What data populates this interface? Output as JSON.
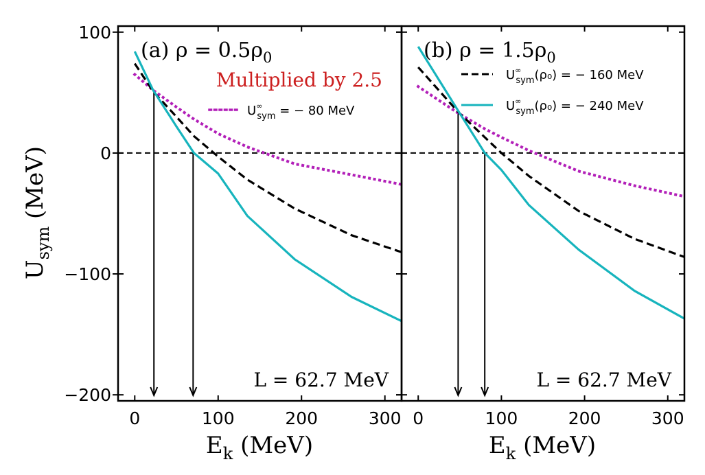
{
  "chart_data": [
    {
      "type": "line",
      "panel_label": "(a) ρ = 0.5ρ",
      "panel_label_sub": "0",
      "annotation": "Multiplied by 2.5",
      "annotation_color": "#cc1f1f",
      "l_label": "L = 62.7 MeV",
      "xlabel": "E",
      "xlabel_sub": "k",
      "xlabel_unit": " (MeV)",
      "ylabel": "U",
      "ylabel_sub": "sym",
      "ylabel_unit": " (MeV)",
      "xlim": [
        -20,
        320
      ],
      "ylim": [
        -205,
        105
      ],
      "xticks": [
        0,
        100,
        200,
        300
      ],
      "yticks": [
        100,
        0,
        -100,
        -200
      ],
      "ytick_labels": [
        "100",
        "0",
        "−100",
        "−200"
      ],
      "xtick_labels": [
        "0",
        "100",
        "200",
        "300"
      ],
      "zero_line": true,
      "arrows_at_x": [
        23,
        70
      ],
      "arrows_from_y": [
        52,
        0
      ],
      "legend": [
        {
          "series": "purple",
          "label_main": "U",
          "label_sup": "∞",
          "label_sub": "sym",
          "label_rest": " = − 80 MeV"
        }
      ],
      "series": [
        {
          "name": "purple",
          "label": "U∞sym = −80 MeV",
          "color": "#b21fb8",
          "style": "dotted",
          "x": [
            0,
            22,
            50,
            71,
            100,
            135,
            192,
            260,
            320
          ],
          "y": [
            65,
            52,
            38,
            28,
            16,
            5,
            -9,
            -18,
            -26
          ]
        },
        {
          "name": "dashed",
          "label": "U∞sym(ρ0) = −160 MeV",
          "color": "#000000",
          "style": "dashed",
          "x": [
            0,
            22,
            50,
            71,
            100,
            135,
            192,
            260,
            320
          ],
          "y": [
            74,
            51,
            30,
            14,
            -3,
            -22,
            -46,
            -68,
            -82
          ]
        },
        {
          "name": "cyan",
          "label": "U∞sym(ρ0) = −240 MeV",
          "color": "#17b4bd",
          "style": "solid",
          "x": [
            0,
            22,
            50,
            71,
            100,
            135,
            192,
            260,
            320
          ],
          "y": [
            84,
            52,
            22,
            0,
            -17,
            -52,
            -88,
            -119,
            -139
          ]
        }
      ]
    },
    {
      "type": "line",
      "panel_label": "(b) ρ = 1.5ρ",
      "panel_label_sub": "0",
      "l_label": "L = 62.7 MeV",
      "xlabel": "E",
      "xlabel_sub": "k",
      "xlabel_unit": " (MeV)",
      "xlim": [
        -20,
        320
      ],
      "ylim": [
        -205,
        105
      ],
      "xticks": [
        0,
        100,
        200,
        300
      ],
      "xtick_labels": [
        "0",
        "100",
        "200",
        "300"
      ],
      "zero_line": true,
      "arrows_at_x": [
        48,
        80
      ],
      "arrows_from_y": [
        35,
        0
      ],
      "legend": [
        {
          "series": "dashed",
          "label_main": "U",
          "label_sup": "∞",
          "label_sub": "sym",
          "label_rest": "(ρ₀) = − 160 MeV"
        },
        {
          "series": "cyan",
          "label_main": "U",
          "label_sup": "∞",
          "label_sub": "sym",
          "label_rest": "(ρ₀) = − 240 MeV"
        }
      ],
      "series": [
        {
          "name": "purple",
          "color": "#b21fb8",
          "style": "dotted",
          "x": [
            0,
            48,
            80,
            100,
            133,
            193,
            260,
            320
          ],
          "y": [
            55,
            33,
            20,
            13,
            2,
            -15,
            -27,
            -36
          ]
        },
        {
          "name": "dashed",
          "color": "#000000",
          "style": "dashed",
          "x": [
            0,
            48,
            80,
            100,
            133,
            193,
            260,
            320
          ],
          "y": [
            71,
            34,
            13,
            0,
            -19,
            -48,
            -71,
            -86
          ]
        },
        {
          "name": "cyan",
          "color": "#17b4bd",
          "style": "solid",
          "x": [
            0,
            48,
            80,
            100,
            133,
            193,
            260,
            320
          ],
          "y": [
            88,
            35,
            0,
            -14,
            -43,
            -80,
            -114,
            -137
          ]
        }
      ]
    }
  ]
}
